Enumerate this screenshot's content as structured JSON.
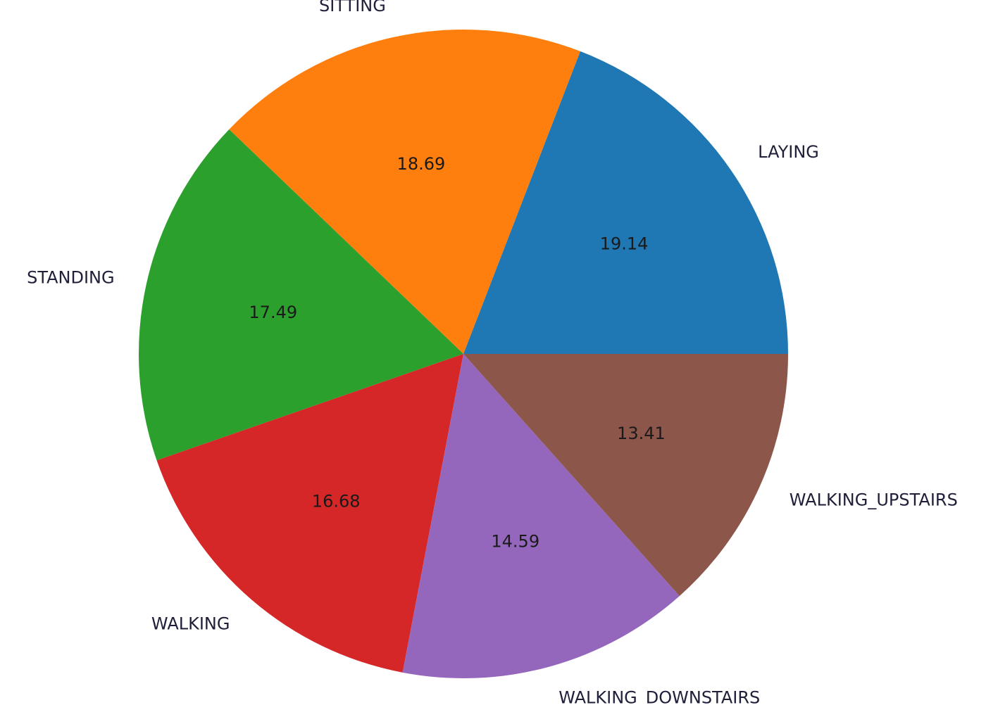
{
  "chart_data": {
    "type": "pie",
    "categories": [
      "LAYING",
      "SITTING",
      "STANDING",
      "WALKING",
      "WALKING_DOWNSTAIRS",
      "WALKING_UPSTAIRS"
    ],
    "values": [
      19.14,
      18.69,
      17.49,
      16.68,
      14.59,
      13.41
    ],
    "value_labels": [
      "19.14",
      "18.69",
      "17.49",
      "16.68",
      "14.59",
      "13.41"
    ],
    "colors": [
      "#1f77b4",
      "#ff7f0e",
      "#2ca02c",
      "#d62728",
      "#9467bd",
      "#8c564b"
    ],
    "start_angle_deg": 0,
    "direction": "counterclockwise"
  }
}
